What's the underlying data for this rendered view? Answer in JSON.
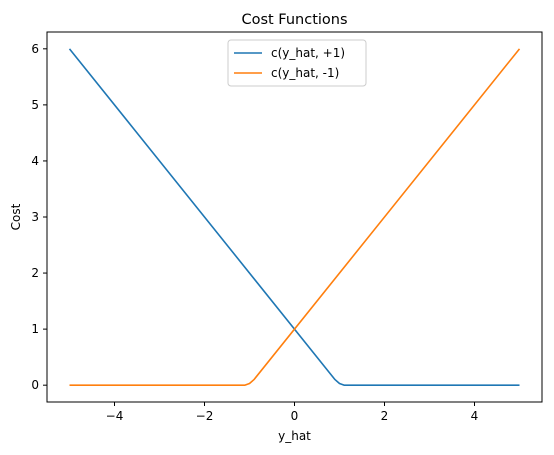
{
  "chart_data": {
    "type": "line",
    "title": "Cost Functions",
    "xlabel": "y_hat",
    "ylabel": "Cost",
    "xlim": [
      -5.5,
      5.5
    ],
    "ylim": [
      -0.3,
      6.3
    ],
    "xticks": [
      -4,
      -2,
      0,
      2,
      4
    ],
    "xtick_labels": [
      "−4",
      "−2",
      "0",
      "2",
      "4"
    ],
    "yticks": [
      0,
      1,
      2,
      3,
      4,
      5,
      6
    ],
    "ytick_labels": [
      "0",
      "1",
      "2",
      "3",
      "4",
      "5",
      "6"
    ],
    "grid": false,
    "legend_position": "top-center",
    "series": [
      {
        "name": "c(y_hat, +1)",
        "color": "#1f77b4",
        "points": [
          [
            -5,
            6
          ],
          [
            0.9,
            0.1
          ],
          [
            1.0,
            0.03
          ],
          [
            1.1,
            0
          ],
          [
            5,
            0
          ]
        ]
      },
      {
        "name": "c(y_hat, -1)",
        "color": "#ff7f0e",
        "points": [
          [
            -5,
            0
          ],
          [
            -1.1,
            0
          ],
          [
            -1.0,
            0.03
          ],
          [
            -0.9,
            0.1
          ],
          [
            5,
            6
          ]
        ]
      }
    ]
  }
}
